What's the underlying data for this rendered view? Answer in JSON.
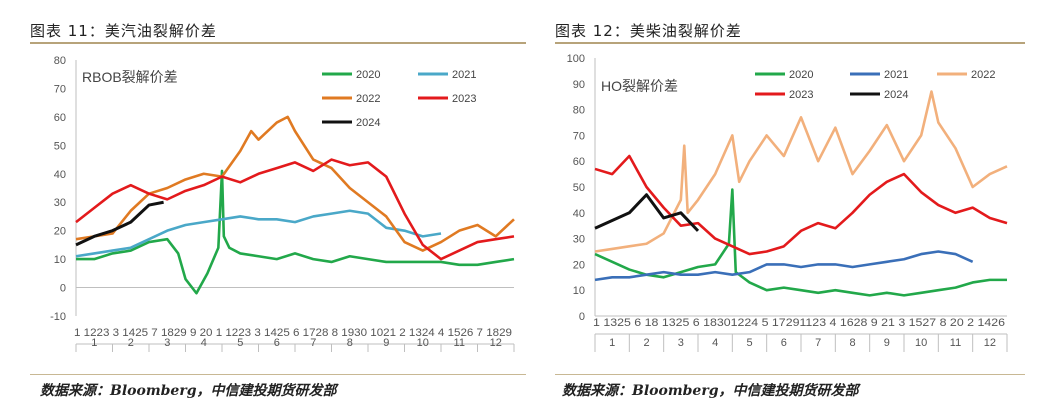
{
  "figures": [
    {
      "title": "图表 11：美汽油裂解价差",
      "source": "数据来源：Bloomberg，中信建投期货研发部",
      "chart_data": {
        "type": "line",
        "title": "",
        "inner_title": "RBOB裂解价差",
        "ylim": [
          -10,
          80
        ],
        "yticks": [
          -10,
          0,
          10,
          20,
          30,
          40,
          50,
          60,
          70,
          80
        ],
        "xtick_labels": [
          "1",
          "12",
          "23",
          "3",
          "14",
          "25",
          "7",
          "18",
          "29",
          "9",
          "20",
          "1",
          "12",
          "23",
          "3",
          "14",
          "25",
          "6",
          "17",
          "28",
          "8",
          "19",
          "30",
          "10",
          "21",
          "2",
          "13",
          "24",
          "4",
          "15",
          "26",
          "7",
          "18",
          "29"
        ],
        "xtick_label_text": [
          "1 1223 3 1425 7 1829 9 20 1 1223 3 1425 6 1728 8 1930 1021 2 1324 4 1526 7 1829"
        ],
        "months": [
          "1",
          "2",
          "3",
          "4",
          "5",
          "6",
          "7",
          "8",
          "9",
          "10",
          "11",
          "12"
        ],
        "grid": false,
        "legend_position": "top-right",
        "series": [
          {
            "name": "2020",
            "color": "#22a84a",
            "x": [
              0,
              0.5,
              1,
              1.5,
              2,
              2.5,
              2.8,
              3,
              3.3,
              3.6,
              3.9,
              4,
              4.05,
              4.2,
              4.5,
              5,
              5.5,
              6,
              6.5,
              7,
              7.5,
              8,
              8.5,
              9,
              9.5,
              10,
              10.5,
              11,
              11.5,
              12
            ],
            "values": [
              10,
              10,
              12,
              13,
              16,
              17,
              12,
              3,
              -2,
              5,
              14,
              41,
              18,
              14,
              12,
              11,
              10,
              12,
              10,
              9,
              11,
              10,
              9,
              9,
              9,
              9,
              8,
              8,
              9,
              10
            ]
          },
          {
            "name": "2021",
            "color": "#4aa8c8",
            "x": [
              0,
              0.5,
              1,
              1.5,
              2,
              2.5,
              3,
              3.5,
              4,
              4.5,
              5,
              5.5,
              6,
              6.5,
              7,
              7.5,
              8,
              8.5,
              9,
              9.5,
              10
            ],
            "values": [
              11,
              12,
              13,
              14,
              17,
              20,
              22,
              23,
              24,
              25,
              24,
              24,
              23,
              25,
              26,
              27,
              26,
              21,
              20,
              18,
              19
            ]
          },
          {
            "name": "2022",
            "color": "#e07a22",
            "x": [
              0,
              0.5,
              1,
              1.5,
              2,
              2.5,
              3,
              3.5,
              4,
              4.5,
              4.8,
              5,
              5.5,
              5.8,
              6,
              6.5,
              7,
              7.5,
              8,
              8.5,
              9,
              9.5,
              10,
              10.5,
              11,
              11.5,
              12
            ],
            "values": [
              17,
              18,
              19,
              27,
              33,
              35,
              38,
              40,
              39,
              48,
              55,
              52,
              58,
              60,
              55,
              45,
              42,
              35,
              30,
              25,
              16,
              13,
              16,
              20,
              22,
              18,
              24
            ]
          },
          {
            "name": "2023",
            "color": "#e31a1c",
            "x": [
              0,
              0.5,
              1,
              1.5,
              2,
              2.5,
              3,
              3.5,
              4,
              4.5,
              5,
              5.5,
              6,
              6.5,
              7,
              7.5,
              8,
              8.5,
              9,
              9.5,
              10,
              10.5,
              11,
              11.5,
              12
            ],
            "values": [
              23,
              28,
              33,
              36,
              33,
              31,
              34,
              36,
              39,
              37,
              40,
              42,
              44,
              41,
              45,
              43,
              44,
              39,
              26,
              15,
              10,
              13,
              16,
              17,
              18
            ]
          },
          {
            "name": "2024",
            "color": "#111111",
            "x": [
              0,
              0.5,
              1,
              1.5,
              2,
              2.4
            ],
            "values": [
              15,
              18,
              20,
              23,
              29,
              30
            ]
          }
        ]
      }
    },
    {
      "title": "图表 12：美柴油裂解价差",
      "source": "数据来源：Bloomberg，中信建投期货研发部",
      "chart_data": {
        "type": "line",
        "title": "",
        "inner_title": "HO裂解价差",
        "ylim": [
          0,
          100
        ],
        "yticks": [
          0,
          10,
          20,
          30,
          40,
          50,
          60,
          70,
          80,
          90,
          100
        ],
        "xtick_label_text": [
          "1 1325 6 18 1325 6 18301224 5 17291123 4 1628 9 21 3 1527 8 20 2 1426"
        ],
        "months": [
          "1",
          "2",
          "3",
          "4",
          "5",
          "6",
          "7",
          "8",
          "9",
          "10",
          "11",
          "12"
        ],
        "grid": false,
        "legend_position": "top-right",
        "series": [
          {
            "name": "2020",
            "color": "#22a84a",
            "x": [
              0,
              0.5,
              1,
              1.5,
              2,
              2.5,
              3,
              3.5,
              3.9,
              4,
              4.1,
              4.5,
              5,
              5.5,
              6,
              6.5,
              7,
              7.5,
              8,
              8.5,
              9,
              9.5,
              10,
              10.5,
              11,
              11.5,
              12
            ],
            "values": [
              24,
              21,
              18,
              16,
              15,
              17,
              19,
              20,
              28,
              49,
              17,
              13,
              10,
              11,
              10,
              9,
              10,
              9,
              8,
              9,
              8,
              9,
              10,
              11,
              13,
              14,
              14
            ]
          },
          {
            "name": "2021",
            "color": "#3a6fb8",
            "x": [
              0,
              0.5,
              1,
              1.5,
              2,
              2.5,
              3,
              3.5,
              4,
              4.5,
              5,
              5.5,
              6,
              6.5,
              7,
              7.5,
              8,
              8.5,
              9,
              9.5,
              10,
              10.5,
              11
            ],
            "values": [
              14,
              15,
              15,
              16,
              17,
              16,
              16,
              17,
              16,
              17,
              20,
              20,
              19,
              20,
              20,
              19,
              20,
              21,
              22,
              24,
              25,
              24,
              21
            ]
          },
          {
            "name": "2022",
            "color": "#f2b07c",
            "x": [
              0,
              0.5,
              1,
              1.5,
              2,
              2.5,
              2.6,
              2.7,
              3,
              3.5,
              4,
              4.2,
              4.5,
              5,
              5.5,
              6,
              6.5,
              7,
              7.5,
              8,
              8.5,
              9,
              9.5,
              9.8,
              10,
              10.5,
              11,
              11.5,
              12
            ],
            "values": [
              25,
              26,
              27,
              28,
              32,
              45,
              66,
              40,
              45,
              55,
              70,
              52,
              60,
              70,
              62,
              77,
              60,
              73,
              55,
              64,
              74,
              60,
              70,
              87,
              75,
              65,
              50,
              55,
              58
            ]
          },
          {
            "name": "2023",
            "color": "#e31a1c",
            "x": [
              0,
              0.5,
              1,
              1.5,
              2,
              2.5,
              3,
              3.5,
              4,
              4.5,
              5,
              5.5,
              6,
              6.5,
              7,
              7.5,
              8,
              8.5,
              9,
              9.5,
              10,
              10.5,
              11,
              11.5,
              12
            ],
            "values": [
              57,
              55,
              62,
              50,
              42,
              35,
              36,
              30,
              27,
              24,
              25,
              27,
              33,
              36,
              34,
              40,
              47,
              52,
              55,
              48,
              43,
              40,
              42,
              38,
              36
            ]
          },
          {
            "name": "2024",
            "color": "#111111",
            "x": [
              0,
              0.5,
              1,
              1.5,
              2,
              2.5,
              3
            ],
            "values": [
              34,
              37,
              40,
              47,
              38,
              40,
              33
            ]
          }
        ]
      }
    }
  ]
}
